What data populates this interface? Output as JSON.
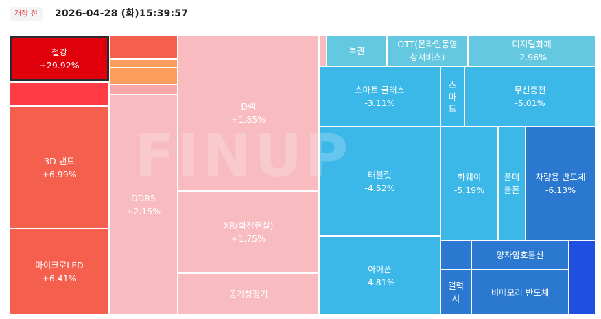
{
  "header": {
    "status_badge": "개장 전",
    "timestamp": "2026-04-28 (화)15:39:57"
  },
  "watermark": "FINUP",
  "colors": {
    "strong_up": "#e0000c",
    "up_red": "#ff3b46",
    "up": "#f4604d",
    "up_light": "#f7a7a7",
    "up_lighter": "#f8bbbf",
    "up_orange": "#fb9d5c",
    "down_light": "#64c8e1",
    "down": "#3bb7e8",
    "down_mid": "#36a8e3",
    "down_deep": "#2a78cf",
    "down_strong": "#1f4fe0"
  },
  "tiles": [
    {
      "name": "철강",
      "change": "+29.92%",
      "color": "#e0000c"
    },
    {
      "name": "",
      "change": "",
      "color": "#ff3b46"
    },
    {
      "name": "3D 낸드",
      "change": "+6.99%",
      "color": "#f4604d"
    },
    {
      "name": "마이크로LED",
      "change": "+6.41%",
      "color": "#f4604d"
    },
    {
      "name": "",
      "change": "",
      "color": "#f4604d"
    },
    {
      "name": "",
      "change": "",
      "color": "#fb9d5c"
    },
    {
      "name": "",
      "change": "",
      "color": "#fb9d5c"
    },
    {
      "name": "",
      "change": "",
      "color": "#f7a7a7"
    },
    {
      "name": "DDR5",
      "change": "+2.15%",
      "color": "#f8bbbf"
    },
    {
      "name": "D램",
      "change": "+1.85%",
      "color": "#f8bbbf"
    },
    {
      "name": "XR(확장현실)",
      "change": "+1.75%",
      "color": "#f8bbbf"
    },
    {
      "name": "공기청정기",
      "change": "",
      "color": "#f8bbbf"
    },
    {
      "name": "",
      "change": "",
      "color": "#f8bbbf"
    },
    {
      "name": "복권",
      "change": "",
      "color": "#64c8e1"
    },
    {
      "name": "OTT(온라인동영\n상서비스)",
      "change": "",
      "color": "#64c8e1"
    },
    {
      "name": "디지털화폐",
      "change": "-2.96%",
      "color": "#64c8e1"
    },
    {
      "name": "스마트 글래스",
      "change": "-3.11%",
      "color": "#3bb7e8"
    },
    {
      "name": "스\n마\n트",
      "change": "",
      "color": "#3bb7e8"
    },
    {
      "name": "무선충전",
      "change": "-5.01%",
      "color": "#3bb7e8"
    },
    {
      "name": "태블릿",
      "change": "-4.52%",
      "color": "#3bb7e8"
    },
    {
      "name": "화웨이",
      "change": "-5.19%",
      "color": "#3bb7e8"
    },
    {
      "name": "폴더\n블폰",
      "change": "",
      "color": "#3bb7e8"
    },
    {
      "name": "차량용 반도체",
      "change": "-6.13%",
      "color": "#2a78cf"
    },
    {
      "name": "아이폰",
      "change": "-4.81%",
      "color": "#3bb7e8"
    },
    {
      "name": "",
      "change": "",
      "color": "#2a78cf"
    },
    {
      "name": "양자암호통신",
      "change": "",
      "color": "#2a78cf"
    },
    {
      "name": "",
      "change": "",
      "color": "#1f4fe0"
    },
    {
      "name": "갤럭\n시",
      "change": "",
      "color": "#2a78cf"
    },
    {
      "name": "비메모리 반도체",
      "change": "",
      "color": "#2a78cf"
    }
  ]
}
